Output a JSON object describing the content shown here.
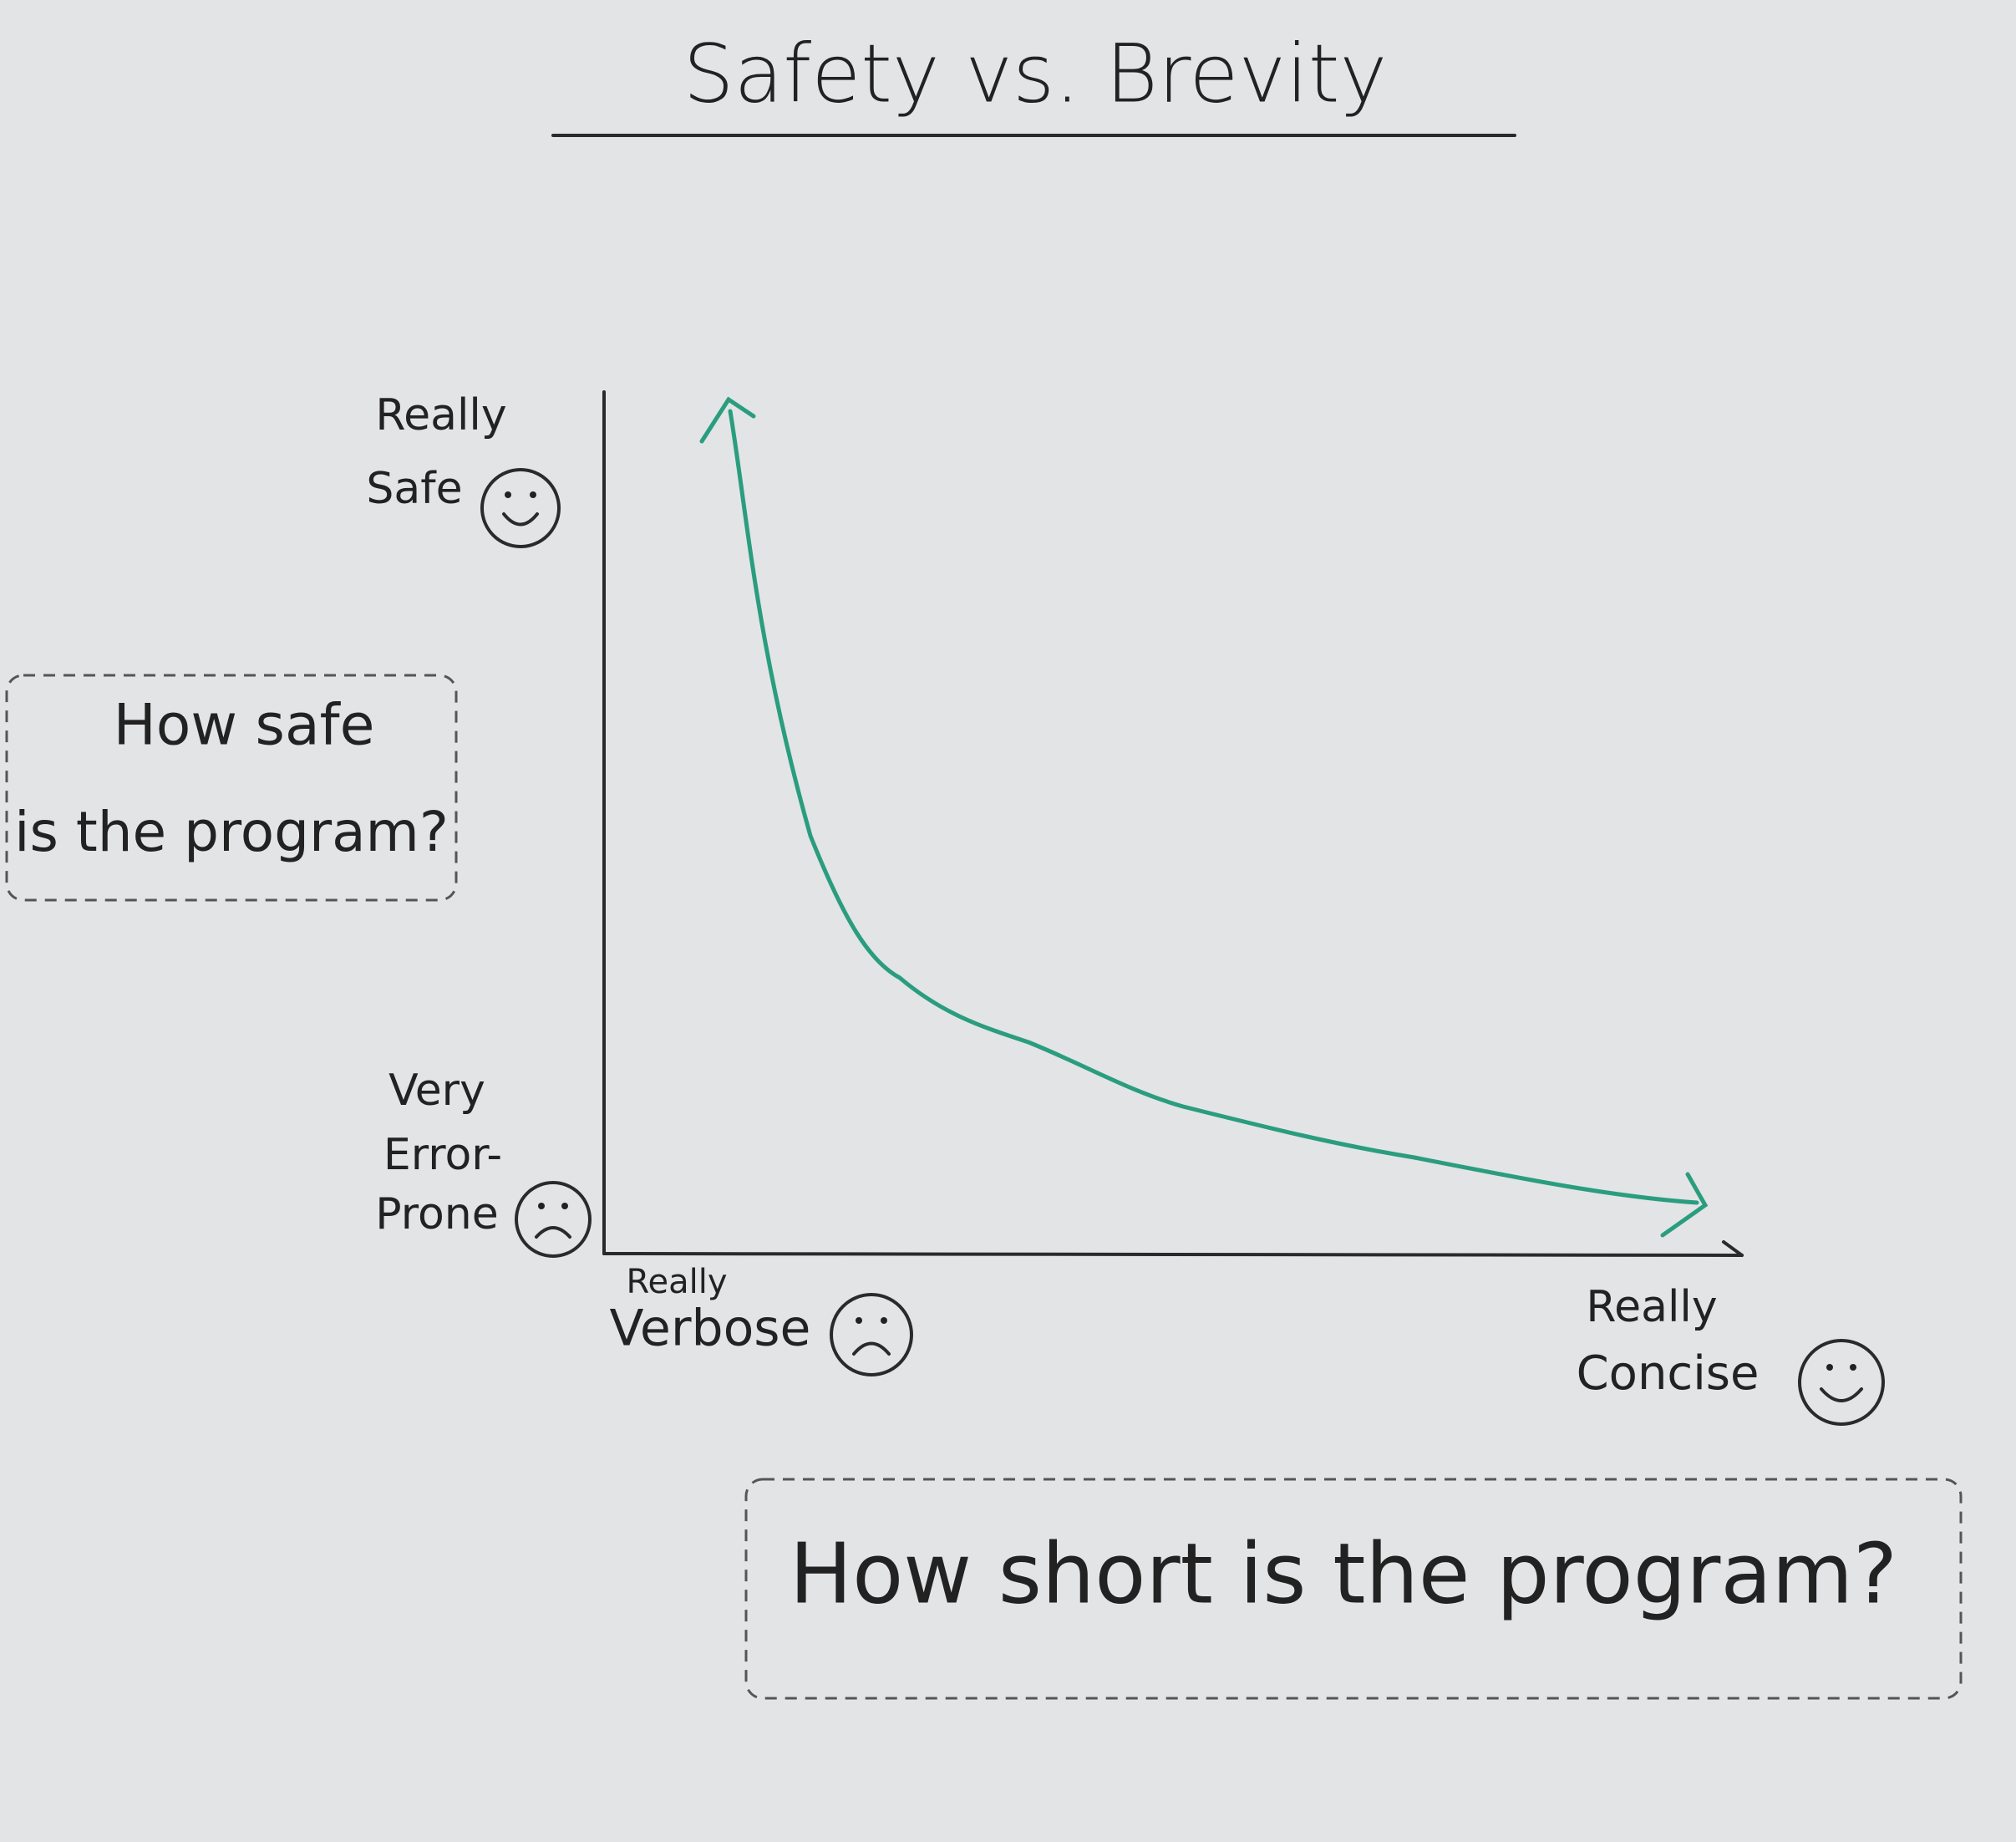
{
  "chart_data": {
    "type": "line",
    "title": "Safety vs. Brevity",
    "y_top_label": [
      "Really",
      "Safe"
    ],
    "y_bottom_label": [
      "Very",
      "Error-",
      "Prone"
    ],
    "x_left_label": [
      "Really",
      "Verbose"
    ],
    "x_right_label": [
      "Really",
      "Concise"
    ],
    "ylabel": [
      "How safe",
      "is the program?"
    ],
    "xlabel": "How short is the program?"
  }
}
